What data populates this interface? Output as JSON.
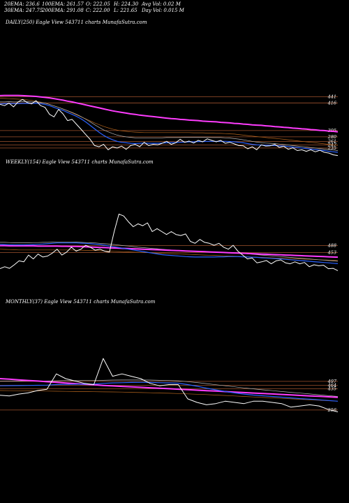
{
  "stats": {
    "row1": [
      "20EMA: 236.6",
      "100EMA: 261.57",
      "O: 222.05",
      "H: 224.30",
      "Avg Vol: 0.02  M"
    ],
    "row2": [
      "30EMA: 247.75",
      "200EMA: 291.08",
      "C: 222.00",
      "L: 221.65",
      "Day Vol: 0.015 M"
    ]
  },
  "colors": {
    "background": "#000000",
    "price": "#ffffff",
    "ema_fast": "#2a62ff",
    "ema_pink": "#ff3cff",
    "ema_brown": "#b5651d",
    "ema_gray": "#b8b8b8",
    "level_line": "#a0522d"
  },
  "chart_data": [
    {
      "type": "line",
      "title": "DAILY(250) Eagle  View  543711 charts MunafaSutra.com",
      "level_labels": [
        "441",
        "416",
        "305",
        "280",
        "261",
        "247",
        "235"
      ],
      "series": [
        {
          "name": "",
          "role": "price",
          "values": [
            410,
            405,
            415,
            400,
            420,
            430,
            418,
            412,
            425,
            405,
            398,
            370,
            360,
            390,
            372,
            345,
            350,
            330,
            310,
            290,
            270,
            245,
            240,
            250,
            228,
            240,
            235,
            243,
            230,
            245,
            250,
            240,
            258,
            245,
            250,
            248,
            254,
            262,
            250,
            256,
            270,
            258,
            263,
            255,
            266,
            260,
            272,
            266,
            260,
            266,
            254,
            258,
            252,
            245,
            244,
            232,
            240,
            228,
            248,
            243,
            244,
            250,
            238,
            242,
            230,
            236,
            225,
            228,
            222,
            228,
            220,
            226,
            218,
            215,
            208,
            205
          ]
        },
        {
          "name": "",
          "role": "ema_fast",
          "values": [
            412,
            413,
            414,
            413,
            413,
            414,
            414,
            414,
            415,
            413,
            410,
            405,
            398,
            392,
            386,
            378,
            370,
            362,
            352,
            340,
            326,
            312,
            298,
            286,
            276,
            268,
            262,
            258,
            256,
            254,
            253,
            254,
            255,
            254,
            254,
            254,
            255,
            256,
            257,
            257,
            258,
            259,
            260,
            260,
            261,
            261,
            262,
            262,
            262,
            262,
            262,
            261,
            260,
            258,
            256,
            253,
            250,
            248,
            247,
            246,
            246,
            245,
            244,
            243,
            241,
            239,
            237,
            235,
            233,
            231,
            229,
            227,
            225,
            222,
            220,
            218
          ]
        },
        {
          "name": "",
          "role": "ema_gray",
          "values": [
            420,
            420,
            421,
            420,
            420,
            421,
            421,
            420,
            420,
            418,
            415,
            410,
            404,
            398,
            392,
            385,
            378,
            370,
            361,
            351,
            340,
            329,
            318,
            308,
            300,
            293,
            287,
            283,
            280,
            278,
            276,
            276,
            276,
            276,
            276,
            276,
            276,
            277,
            277,
            277,
            277,
            278,
            278,
            278,
            278,
            278,
            278,
            277,
            277,
            277,
            276,
            275,
            273,
            271,
            268,
            265,
            262,
            259,
            257,
            255,
            254,
            253,
            251,
            249,
            247,
            245,
            243,
            241,
            239,
            237,
            235,
            233,
            231,
            229,
            227,
            225
          ]
        },
        {
          "name": "",
          "role": "ema_brown",
          "values": [
            435,
            434,
            433,
            432,
            431,
            430,
            428,
            426,
            423,
            419,
            415,
            410,
            404,
            398,
            391,
            384,
            376,
            368,
            360,
            352,
            344,
            336,
            329,
            322,
            316,
            311,
            307,
            304,
            302,
            300,
            299,
            298,
            297,
            297,
            297,
            297,
            297,
            297,
            297,
            297,
            297,
            297,
            297,
            296,
            296,
            296,
            295,
            295,
            294,
            294,
            293,
            292,
            291,
            289,
            287,
            285,
            283,
            281,
            279,
            277,
            275,
            274,
            272,
            270,
            268,
            266,
            264,
            262,
            260,
            258,
            256,
            254,
            252,
            250,
            248,
            246
          ]
        },
        {
          "name": "",
          "role": "ema_pink",
          "values": [
            445,
            446,
            446,
            446,
            446,
            445,
            444,
            443,
            442,
            440,
            438,
            436,
            433,
            430,
            427,
            423,
            420,
            416,
            412,
            408,
            404,
            400,
            396,
            392,
            388,
            384,
            381,
            378,
            375,
            372,
            370,
            367,
            365,
            363,
            361,
            359,
            357,
            355,
            353,
            352,
            350,
            349,
            347,
            346,
            345,
            343,
            342,
            341,
            340,
            338,
            337,
            336,
            334,
            333,
            331,
            330,
            328,
            327,
            326,
            324,
            323,
            321,
            320,
            318,
            317,
            315,
            314,
            312,
            311,
            309,
            308,
            306,
            305,
            303,
            302,
            300
          ]
        }
      ]
    },
    {
      "type": "line",
      "title": "WEEKLY(154) Eagle  View  543711 charts MunafaSutra.com",
      "level_labels": [
        "488",
        "453"
      ],
      "series": [
        {
          "name": "",
          "role": "price",
          "values": [
            370,
            380,
            372,
            390,
            410,
            405,
            440,
            420,
            445,
            430,
            435,
            450,
            470,
            440,
            455,
            480,
            460,
            470,
            490,
            480,
            465,
            470,
            460,
            455,
            560,
            650,
            640,
            610,
            585,
            600,
            590,
            605,
            560,
            575,
            560,
            545,
            560,
            545,
            540,
            548,
            510,
            500,
            520,
            505,
            500,
            490,
            500,
            480,
            470,
            490,
            460,
            440,
            420,
            425,
            400,
            405,
            412,
            395,
            410,
            415,
            400,
            395,
            405,
            395,
            402,
            380,
            390,
            385,
            388,
            370,
            372,
            360
          ]
        },
        {
          "name": "",
          "role": "ema_fast",
          "values": [
            495,
            494,
            493,
            492,
            492,
            492,
            493,
            494,
            495,
            496,
            498,
            500,
            502,
            502,
            502,
            502,
            502,
            501,
            500,
            498,
            496,
            494,
            490,
            486,
            482,
            478,
            474,
            470,
            466,
            462,
            458,
            454,
            450,
            446,
            442,
            440,
            438,
            436,
            434,
            432,
            431,
            430,
            430,
            430,
            430,
            430,
            431,
            431,
            432,
            432,
            432,
            431,
            430,
            429,
            428,
            426,
            425,
            423,
            422,
            420,
            418,
            416,
            414,
            412,
            410,
            408,
            406,
            404,
            402,
            400,
            398,
            396
          ]
        },
        {
          "name": "",
          "role": "ema_gray",
          "values": [
            505,
            505,
            504,
            503,
            503,
            503,
            503,
            504,
            504,
            505,
            505,
            506,
            507,
            507,
            507,
            507,
            506,
            505,
            504,
            503,
            502,
            500,
            498,
            496,
            494,
            491,
            488,
            486,
            483,
            480,
            478,
            476,
            474,
            472,
            470,
            468,
            466,
            464,
            463,
            462,
            461,
            460,
            459,
            458,
            457,
            456,
            455,
            454,
            452,
            451,
            450,
            448,
            446,
            444,
            442,
            440,
            438,
            436,
            434,
            432,
            430,
            428,
            426,
            424,
            422,
            420,
            418,
            416,
            414,
            412,
            410,
            408
          ]
        },
        {
          "name": "",
          "role": "ema_brown",
          "values": [
            470,
            469,
            468,
            467,
            466,
            466,
            466,
            466,
            466,
            466,
            466,
            466,
            466,
            466,
            466,
            466,
            465,
            465,
            464,
            464,
            463,
            462,
            461,
            460,
            459,
            458,
            457,
            456,
            455,
            454,
            453,
            452,
            451,
            450,
            449,
            448,
            447,
            446,
            445,
            444,
            443,
            442,
            441,
            440,
            439,
            438,
            437,
            436,
            435,
            434,
            433,
            432,
            431,
            430,
            429,
            428,
            427,
            426,
            425,
            424,
            423,
            422,
            421,
            420,
            419,
            418,
            417,
            416,
            415,
            414,
            413,
            412
          ]
        },
        {
          "name": "",
          "role": "ema_pink",
          "values": [
            488,
            488,
            487,
            487,
            487,
            487,
            487,
            487,
            486,
            486,
            486,
            486,
            486,
            485,
            485,
            484,
            484,
            483,
            482,
            481,
            480,
            479,
            478,
            477,
            476,
            475,
            474,
            473,
            472,
            471,
            470,
            469,
            468,
            467,
            466,
            465,
            464,
            463,
            462,
            461,
            460,
            459,
            458,
            457,
            456,
            455,
            454,
            453,
            452,
            451,
            450,
            449,
            448,
            447,
            446,
            445,
            444,
            443,
            442,
            441,
            440,
            439,
            438,
            437,
            436,
            435,
            434,
            433,
            432,
            431,
            430,
            429
          ]
        }
      ]
    },
    {
      "type": "line",
      "title": "MONTHLY(37) Eagle  View  543711 charts MunafaSutra.com",
      "level_labels": [
        "497",
        "464",
        "435",
        "256"
      ],
      "series": [
        {
          "name": "",
          "role": "price",
          "values": [
            380,
            375,
            390,
            400,
            420,
            430,
            560,
            520,
            500,
            480,
            470,
            690,
            540,
            560,
            540,
            520,
            480,
            460,
            470,
            470,
            350,
            320,
            300,
            310,
            330,
            320,
            310,
            330,
            330,
            320,
            310,
            280,
            290,
            300,
            290,
            260,
            240
          ]
        },
        {
          "name": "",
          "role": "ema_fast",
          "values": [
            460,
            461,
            462,
            463,
            464,
            465,
            470,
            472,
            473,
            474,
            474,
            480,
            484,
            486,
            488,
            489,
            488,
            486,
            484,
            482,
            470,
            456,
            440,
            426,
            412,
            400,
            390,
            382,
            376,
            370,
            364,
            358,
            352,
            347,
            342,
            336,
            330
          ]
        },
        {
          "name": "",
          "role": "ema_gray",
          "values": [
            500,
            500,
            500,
            500,
            500,
            500,
            502,
            503,
            503,
            504,
            504,
            506,
            508,
            509,
            509,
            509,
            508,
            506,
            504,
            502,
            495,
            487,
            478,
            469,
            460,
            451,
            442,
            434,
            426,
            419,
            412,
            405,
            398,
            391,
            384,
            377,
            370
          ]
        },
        {
          "name": "",
          "role": "ema_brown",
          "values": [
            420,
            419,
            418,
            417,
            416,
            415,
            414,
            413,
            412,
            411,
            410,
            409,
            408,
            407,
            405,
            403,
            401,
            399,
            397,
            395,
            392,
            389,
            386,
            382,
            378,
            374,
            370,
            366,
            362,
            358,
            354,
            350,
            346,
            342,
            338,
            334,
            330
          ]
        },
        {
          "name": "",
          "role": "ema_pink",
          "values": [
            520,
            515,
            510,
            505,
            500,
            494,
            489,
            483,
            478,
            473,
            468,
            463,
            459,
            455,
            451,
            447,
            443,
            439,
            435,
            431,
            427,
            423,
            419,
            415,
            411,
            407,
            403,
            399,
            395,
            391,
            387,
            383,
            379,
            375,
            371,
            367,
            363
          ]
        }
      ]
    }
  ]
}
